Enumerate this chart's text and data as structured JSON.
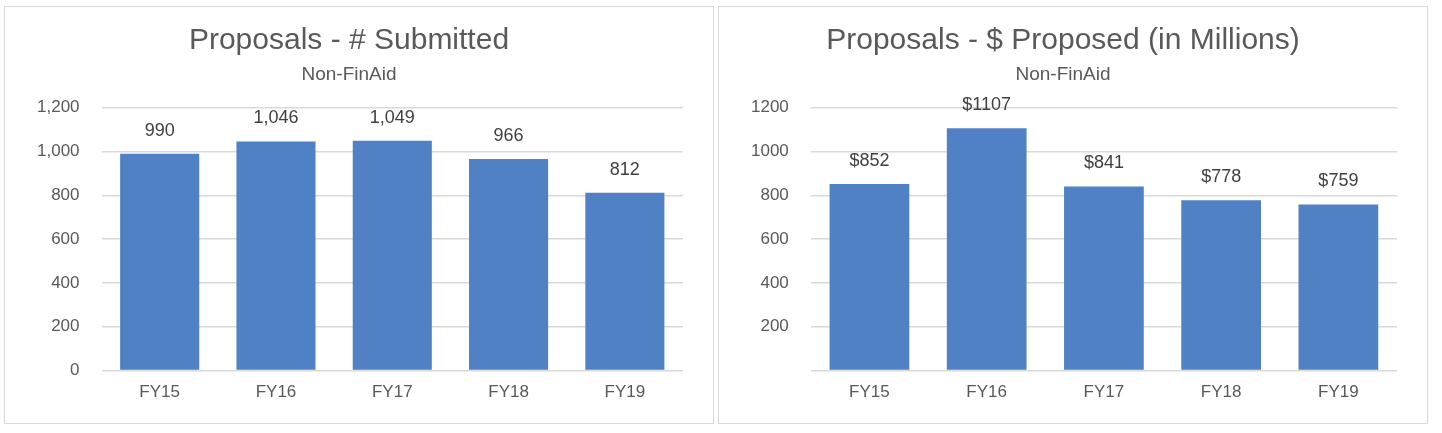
{
  "chart_data": [
    {
      "type": "bar",
      "title": "Proposals - # Submitted",
      "subtitle": "Non-FinAid",
      "categories": [
        "FY15",
        "FY16",
        "FY17",
        "FY18",
        "FY19"
      ],
      "values": [
        990,
        1046,
        1049,
        966,
        812
      ],
      "value_labels": [
        "990",
        "1,046",
        "1,049",
        "966",
        "812"
      ],
      "color": "#4f81c4",
      "ylim": [
        0,
        1200
      ],
      "yticks": [
        0,
        200,
        400,
        600,
        800,
        {
          "value": 1000,
          "label": "1,000"
        },
        {
          "value": 1200,
          "label": "1,200"
        }
      ],
      "grid": "y",
      "legend": false
    },
    {
      "type": "bar",
      "title": "Proposals - $ Proposed (in Millions)",
      "subtitle": "Non-FinAid",
      "categories": [
        "FY15",
        "FY16",
        "FY17",
        "FY18",
        "FY19"
      ],
      "values": [
        852,
        1107,
        841,
        778,
        759
      ],
      "value_labels": [
        "$852",
        "$1107",
        "$841",
        "$778",
        "$759"
      ],
      "color": "#4f81c4",
      "ylim": [
        0,
        1200
      ],
      "yticks": [
        {
          "value": 0,
          "label": null
        },
        200,
        400,
        600,
        800,
        1000,
        1200
      ],
      "grid": "y",
      "legend": false
    }
  ]
}
